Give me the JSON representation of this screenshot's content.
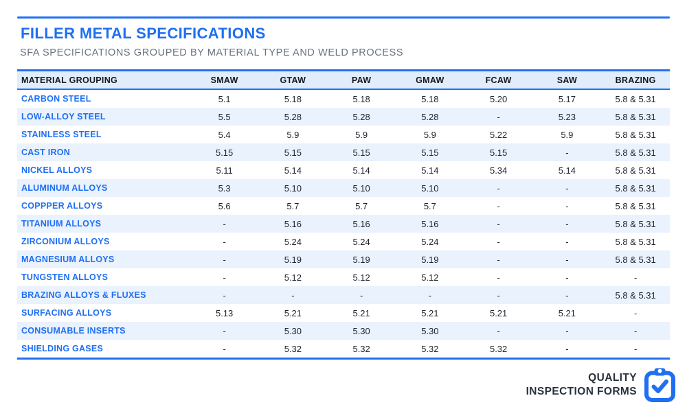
{
  "accent_color": "#1f6ff2",
  "header": {
    "title": "FILLER METAL SPECIFICATIONS",
    "subtitle": "SFA SPECIFICATIONS GROUPED BY MATERIAL TYPE AND WELD PROCESS"
  },
  "table": {
    "columns": [
      "MATERIAL GROUPING",
      "SMAW",
      "GTAW",
      "PAW",
      "GMAW",
      "FCAW",
      "SAW",
      "BRAZING"
    ],
    "rows": [
      {
        "material": "CARBON STEEL",
        "values": [
          "5.1",
          "5.18",
          "5.18",
          "5.18",
          "5.20",
          "5.17",
          "5.8 & 5.31"
        ]
      },
      {
        "material": "LOW-ALLOY STEEL",
        "values": [
          "5.5",
          "5.28",
          "5.28",
          "5.28",
          "-",
          "5.23",
          "5.8 & 5.31"
        ]
      },
      {
        "material": "STAINLESS STEEL",
        "values": [
          "5.4",
          "5.9",
          "5.9",
          "5.9",
          "5.22",
          "5.9",
          "5.8 & 5.31"
        ]
      },
      {
        "material": "CAST IRON",
        "values": [
          "5.15",
          "5.15",
          "5.15",
          "5.15",
          "5.15",
          "-",
          "5.8 & 5.31"
        ]
      },
      {
        "material": "NICKEL ALLOYS",
        "values": [
          "5.11",
          "5.14",
          "5.14",
          "5.14",
          "5.34",
          "5.14",
          "5.8 & 5.31"
        ]
      },
      {
        "material": "ALUMINUM ALLOYS",
        "values": [
          "5.3",
          "5.10",
          "5.10",
          "5.10",
          "-",
          "-",
          "5.8 & 5.31"
        ]
      },
      {
        "material": "COPPPER ALLOYS",
        "values": [
          "5.6",
          "5.7",
          "5.7",
          "5.7",
          "-",
          "-",
          "5.8 & 5.31"
        ]
      },
      {
        "material": "TITANIUM ALLOYS",
        "values": [
          "-",
          "5.16",
          "5.16",
          "5.16",
          "-",
          "-",
          "5.8 & 5.31"
        ]
      },
      {
        "material": "ZIRCONIUM ALLOYS",
        "values": [
          "-",
          "5.24",
          "5.24",
          "5.24",
          "-",
          "-",
          "5.8 & 5.31"
        ]
      },
      {
        "material": "MAGNESIUM ALLOYS",
        "values": [
          "-",
          "5.19",
          "5.19",
          "5.19",
          "-",
          "-",
          "5.8 & 5.31"
        ]
      },
      {
        "material": "TUNGSTEN ALLOYS",
        "values": [
          "-",
          "5.12",
          "5.12",
          "5.12",
          "-",
          "-",
          "-"
        ]
      },
      {
        "material": "BRAZING ALLOYS & FLUXES",
        "values": [
          "-",
          "-",
          "-",
          "-",
          "-",
          "-",
          "5.8 & 5.31"
        ]
      },
      {
        "material": "SURFACING ALLOYS",
        "values": [
          "5.13",
          "5.21",
          "5.21",
          "5.21",
          "5.21",
          "5.21",
          "-"
        ]
      },
      {
        "material": "CONSUMABLE INSERTS",
        "values": [
          "-",
          "5.30",
          "5.30",
          "5.30",
          "-",
          "-",
          "-"
        ]
      },
      {
        "material": "SHIELDING GASES",
        "values": [
          "-",
          "5.32",
          "5.32",
          "5.32",
          "5.32",
          "-",
          "-"
        ]
      }
    ]
  },
  "footer": {
    "brand_line1": "QUALITY",
    "brand_line2": "INSPECTION FORMS",
    "logo_icon": "clipboard-check-icon"
  }
}
